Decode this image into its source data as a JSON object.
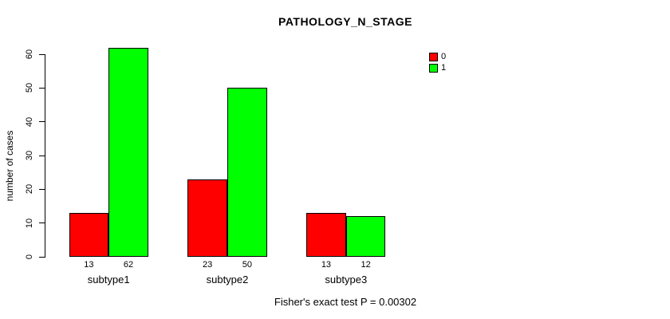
{
  "figure": {
    "background": "#FFFFFF",
    "axis_color": "#000000",
    "text_color": "#000000"
  },
  "chart_data": {
    "type": "bar",
    "title": "PATHOLOGY_N_STAGE",
    "xlabel": "",
    "ylabel": "number of cases",
    "categories": [
      "subtype1",
      "subtype2",
      "subtype3"
    ],
    "series": [
      {
        "name": "0",
        "color": "#FF0000",
        "values": [
          13,
          23,
          13
        ]
      },
      {
        "name": "1",
        "color": "#00FF00",
        "values": [
          62,
          50,
          12
        ]
      }
    ],
    "bar_value_labels": [
      [
        "13",
        "62"
      ],
      [
        "23",
        "50"
      ],
      [
        "13",
        "12"
      ]
    ],
    "ylim": [
      0,
      60
    ],
    "yticks": [
      "0",
      "10",
      "20",
      "30",
      "40",
      "50",
      "60"
    ],
    "grid": false,
    "legend": {
      "position": "top-right",
      "items": [
        {
          "label": "0",
          "color": "#FF0000"
        },
        {
          "label": "1",
          "color": "#00FF00"
        }
      ]
    },
    "annotation": "Fisher's exact test P = 0.00302"
  }
}
